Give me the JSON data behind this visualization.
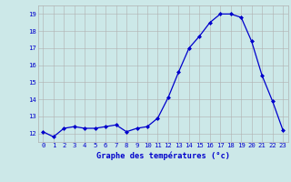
{
  "hours": [
    0,
    1,
    2,
    3,
    4,
    5,
    6,
    7,
    8,
    9,
    10,
    11,
    12,
    13,
    14,
    15,
    16,
    17,
    18,
    19,
    20,
    21,
    22,
    23
  ],
  "temps": [
    12.1,
    11.8,
    12.3,
    12.4,
    12.3,
    12.3,
    12.4,
    12.5,
    12.1,
    12.3,
    12.4,
    12.9,
    14.1,
    15.6,
    17.0,
    17.7,
    18.5,
    19.0,
    19.0,
    18.8,
    17.4,
    15.4,
    13.9,
    12.2
  ],
  "xlabel": "Graphe des températures (°c)",
  "xlim": [
    -0.5,
    23.5
  ],
  "ylim": [
    11.5,
    19.5
  ],
  "yticks": [
    12,
    13,
    14,
    15,
    16,
    17,
    18,
    19
  ],
  "xticks": [
    0,
    1,
    2,
    3,
    4,
    5,
    6,
    7,
    8,
    9,
    10,
    11,
    12,
    13,
    14,
    15,
    16,
    17,
    18,
    19,
    20,
    21,
    22,
    23
  ],
  "line_color": "#0000cc",
  "marker": "D",
  "marker_size": 2.0,
  "bg_color": "#cce8e8",
  "grid_color_major": "#b0b0b0",
  "grid_color_minor": "#cccccc",
  "label_color": "#0000cc",
  "xlabel_color": "#0000cc",
  "tick_fontsize": 5.2,
  "xlabel_fontsize": 6.2
}
